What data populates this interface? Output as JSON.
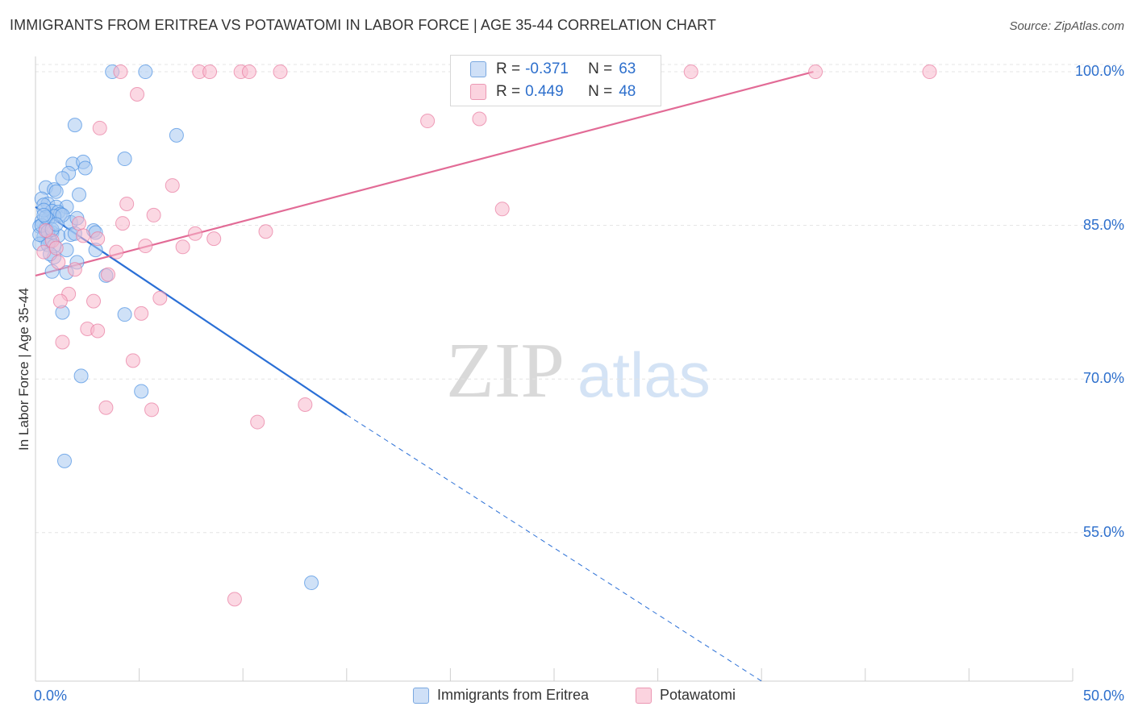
{
  "title": "IMMIGRANTS FROM ERITREA VS POTAWATOMI IN LABOR FORCE | AGE 35-44 CORRELATION CHART",
  "source": "Source: ZipAtlas.com",
  "watermark": {
    "zip": "ZIP",
    "atlas": "atlas"
  },
  "legend": {
    "rows": [
      {
        "r_label": "R =",
        "r_value": "-0.371",
        "n_label": "N =",
        "n_value": "63",
        "color": "#a8c8f0"
      },
      {
        "r_label": "R =",
        "r_value": "0.449",
        "n_label": "N =",
        "n_value": "48",
        "color": "#f7b8cc"
      }
    ]
  },
  "bottom_legend": [
    {
      "label": "Immigrants from Eritrea",
      "color": "#a8c8f0"
    },
    {
      "label": "Potawatomi",
      "color": "#f7b8cc"
    }
  ],
  "chart_data": {
    "type": "scatter",
    "title": "IMMIGRANTS FROM ERITREA VS POTAWATOMI IN LABOR FORCE | AGE 35-44 CORRELATION CHART",
    "xlabel": "",
    "ylabel": "In Labor Force | Age 35-44",
    "xlim": [
      0,
      50
    ],
    "ylim": [
      40.5,
      101.5
    ],
    "x_tick_labels": [
      "0.0%",
      "50.0%"
    ],
    "y_ticks": [
      55,
      70,
      85,
      100
    ],
    "y_tick_labels": [
      "55.0%",
      "70.0%",
      "85.0%",
      "100.0%"
    ],
    "grid": true,
    "series": [
      {
        "name": "Immigrants from Eritrea",
        "color": "#4a90e2",
        "fill": "#a8c8f0",
        "trend": {
          "x": [
            0,
            15
          ],
          "y": [
            86.8,
            66.5
          ],
          "dashed_to": [
            35,
            40.5
          ],
          "color": "#2a6fd6"
        },
        "points": [
          [
            3.7,
            100
          ],
          [
            5.3,
            100
          ],
          [
            1.9,
            94.8
          ],
          [
            6.8,
            93.8
          ],
          [
            4.3,
            91.5
          ],
          [
            1.8,
            91.0
          ],
          [
            2.3,
            91.2
          ],
          [
            2.4,
            90.6
          ],
          [
            1.6,
            90.1
          ],
          [
            1.3,
            89.6
          ],
          [
            0.5,
            88.7
          ],
          [
            0.9,
            88.5
          ],
          [
            1.0,
            88.3
          ],
          [
            2.1,
            88.0
          ],
          [
            0.3,
            87.6
          ],
          [
            0.6,
            87.1
          ],
          [
            0.4,
            87.0
          ],
          [
            1.0,
            86.8
          ],
          [
            1.5,
            86.8
          ],
          [
            0.8,
            86.4
          ],
          [
            1.1,
            86.3
          ],
          [
            1.2,
            86.1
          ],
          [
            0.9,
            85.9
          ],
          [
            0.6,
            85.6
          ],
          [
            0.3,
            85.4
          ],
          [
            0.2,
            84.9
          ],
          [
            0.5,
            84.7
          ],
          [
            0.8,
            84.3
          ],
          [
            2.8,
            84.5
          ],
          [
            2.9,
            84.3
          ],
          [
            1.1,
            84.0
          ],
          [
            1.7,
            84.1
          ],
          [
            0.4,
            83.9
          ],
          [
            0.7,
            83.5
          ],
          [
            0.2,
            83.2
          ],
          [
            0.6,
            83.1
          ],
          [
            1.5,
            82.6
          ],
          [
            2.9,
            82.6
          ],
          [
            0.9,
            81.9
          ],
          [
            2.0,
            81.4
          ],
          [
            0.8,
            80.5
          ],
          [
            1.5,
            80.4
          ],
          [
            3.4,
            80.1
          ],
          [
            1.3,
            76.5
          ],
          [
            4.3,
            76.3
          ],
          [
            2.2,
            70.3
          ],
          [
            5.1,
            68.8
          ],
          [
            1.4,
            62.0
          ],
          [
            13.3,
            50.1
          ],
          [
            0.4,
            86.5
          ],
          [
            1.7,
            85.3
          ],
          [
            0.2,
            84.1
          ],
          [
            0.9,
            83.0
          ],
          [
            0.3,
            85.0
          ],
          [
            0.6,
            84.4
          ],
          [
            1.3,
            86.0
          ],
          [
            2.0,
            85.7
          ],
          [
            0.5,
            85.8
          ],
          [
            0.8,
            84.6
          ],
          [
            1.9,
            84.2
          ],
          [
            0.7,
            82.2
          ],
          [
            0.4,
            86.0
          ],
          [
            1.0,
            85.1
          ]
        ]
      },
      {
        "name": "Potawatomi",
        "color": "#e87aa0",
        "fill": "#f7b8cc",
        "trend": {
          "x": [
            0,
            37.5
          ],
          "y": [
            80.1,
            100
          ],
          "color": "#e26b96"
        },
        "points": [
          [
            4.1,
            100
          ],
          [
            7.9,
            100
          ],
          [
            8.4,
            100
          ],
          [
            9.9,
            100
          ],
          [
            10.3,
            100
          ],
          [
            11.8,
            100
          ],
          [
            31.6,
            100
          ],
          [
            37.6,
            100
          ],
          [
            43.1,
            100
          ],
          [
            4.9,
            97.8
          ],
          [
            18.9,
            95.2
          ],
          [
            21.4,
            95.4
          ],
          [
            3.1,
            94.5
          ],
          [
            6.6,
            88.9
          ],
          [
            4.4,
            87.1
          ],
          [
            5.7,
            86.0
          ],
          [
            22.5,
            86.6
          ],
          [
            4.2,
            85.2
          ],
          [
            2.1,
            85.2
          ],
          [
            7.7,
            84.2
          ],
          [
            8.6,
            83.7
          ],
          [
            11.1,
            84.4
          ],
          [
            3.0,
            83.7
          ],
          [
            5.3,
            83.0
          ],
          [
            7.1,
            82.9
          ],
          [
            3.9,
            82.4
          ],
          [
            0.4,
            82.4
          ],
          [
            0.8,
            83.5
          ],
          [
            1.1,
            81.4
          ],
          [
            1.9,
            80.7
          ],
          [
            3.5,
            80.2
          ],
          [
            1.6,
            78.3
          ],
          [
            2.8,
            77.6
          ],
          [
            6.0,
            77.9
          ],
          [
            1.2,
            77.6
          ],
          [
            5.1,
            76.4
          ],
          [
            2.5,
            74.9
          ],
          [
            3.0,
            74.7
          ],
          [
            1.3,
            73.6
          ],
          [
            4.7,
            71.8
          ],
          [
            13.0,
            67.5
          ],
          [
            3.4,
            67.2
          ],
          [
            5.6,
            67.0
          ],
          [
            10.7,
            65.8
          ],
          [
            9.6,
            48.5
          ],
          [
            0.5,
            84.5
          ],
          [
            2.3,
            84.0
          ],
          [
            1.0,
            82.8
          ]
        ]
      }
    ]
  }
}
